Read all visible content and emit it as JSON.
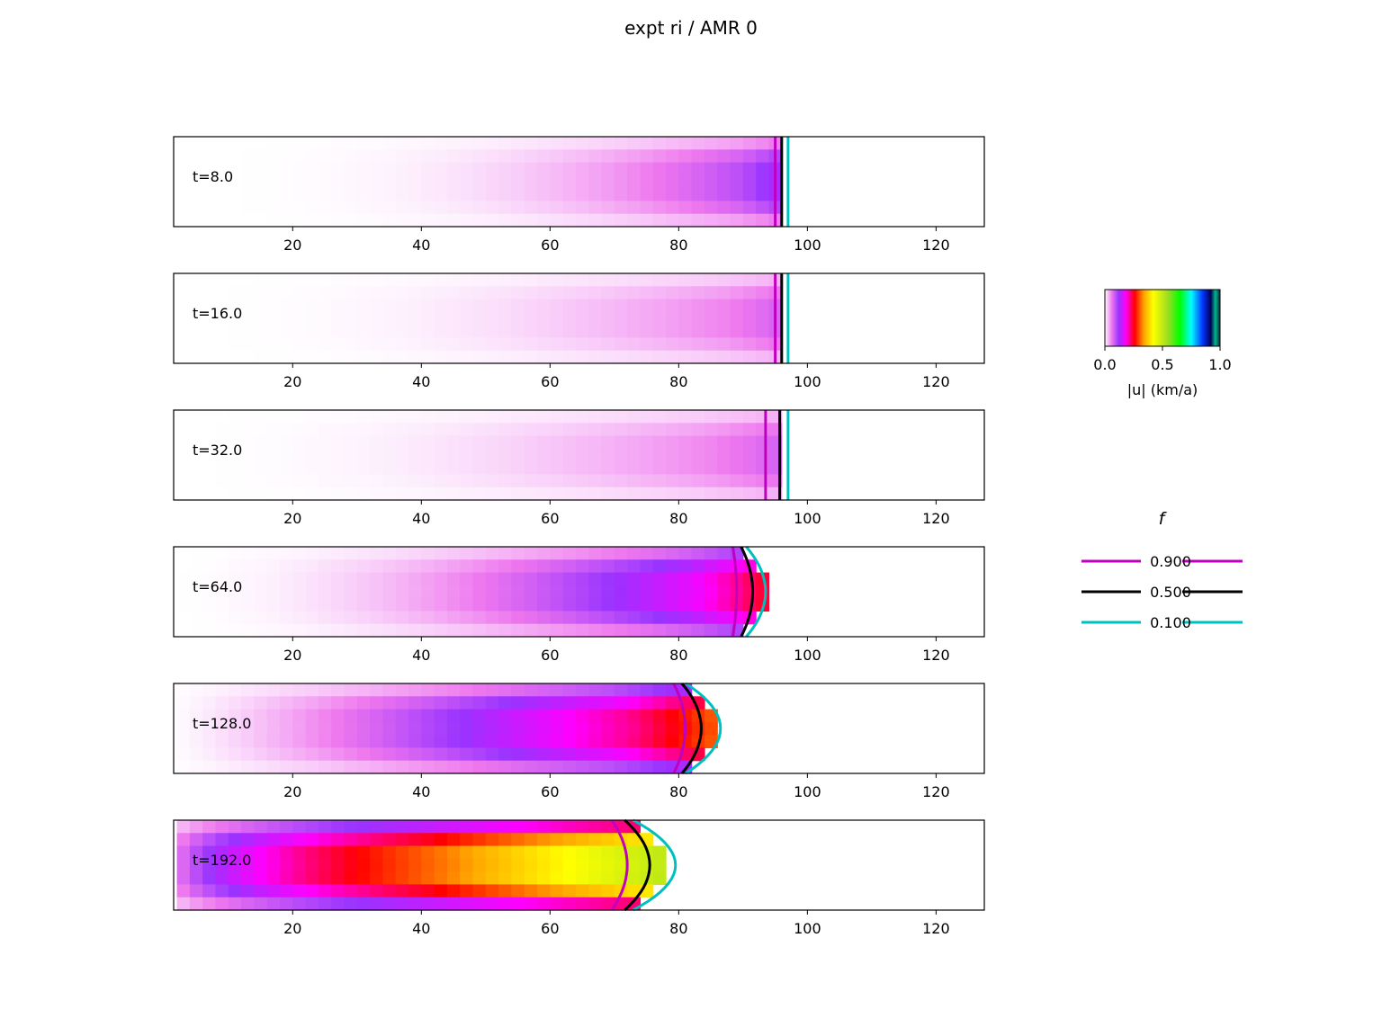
{
  "figure": {
    "title": "expt ri / AMR 0"
  },
  "chart_data": {
    "type": "heatmap",
    "title": "expt ri / AMR 0",
    "x_ticks": [
      20,
      40,
      60,
      80,
      100,
      120
    ],
    "xlim": [
      1.5,
      127.5
    ],
    "colormap": {
      "label": "|u| (km/a)",
      "range": [
        0.0,
        1.0
      ],
      "ticks": [
        "0.0",
        "0.5",
        "1.0"
      ],
      "stops": [
        {
          "v": 0.0,
          "c": "#ffffff"
        },
        {
          "v": 0.06,
          "c": "#ee77ee"
        },
        {
          "v": 0.12,
          "c": "#9933ff"
        },
        {
          "v": 0.18,
          "c": "#ff00ff"
        },
        {
          "v": 0.26,
          "c": "#ff0000"
        },
        {
          "v": 0.34,
          "c": "#ffa500"
        },
        {
          "v": 0.42,
          "c": "#ffff00"
        },
        {
          "v": 0.55,
          "c": "#99dd22"
        },
        {
          "v": 0.65,
          "c": "#00ff00"
        },
        {
          "v": 0.75,
          "c": "#00ffff"
        },
        {
          "v": 0.85,
          "c": "#0033ff"
        },
        {
          "v": 0.92,
          "c": "#000055"
        },
        {
          "v": 0.96,
          "c": "#00bb88"
        },
        {
          "v": 1.0,
          "c": "#002244"
        }
      ]
    },
    "contours": {
      "title": "f",
      "levels": [
        {
          "label": "0.900",
          "color": "#bf00bf"
        },
        {
          "label": "0.500",
          "color": "#000000"
        },
        {
          "label": "0.100",
          "color": "#00bfbf"
        }
      ]
    },
    "panels": [
      {
        "label": "t=8.0",
        "front": 96.5,
        "c": [
          95.0,
          96.0,
          97.0
        ],
        "curv": [
          0,
          0,
          0
        ],
        "umax": 0.12,
        "coreW": 7,
        "gamma": 3.0,
        "edgeExt": 0
      },
      {
        "label": "t=16.0",
        "front": 96.5,
        "c": [
          95.0,
          96.0,
          97.0
        ],
        "curv": [
          0,
          0,
          0
        ],
        "umax": 0.07,
        "coreW": 9,
        "gamma": 2.5,
        "edgeExt": 0
      },
      {
        "label": "t=32.0",
        "front": 96.5,
        "c": [
          93.5,
          95.7,
          97.0
        ],
        "curv": [
          0,
          0,
          0
        ],
        "umax": 0.07,
        "coreW": 12,
        "gamma": 2.2,
        "edgeExt": 0
      },
      {
        "label": "t=64.0",
        "front": 94.5,
        "c": [
          89.0,
          91.5,
          93.5
        ],
        "curv": [
          0.2,
          0.6,
          1.0
        ],
        "umax": 0.22,
        "coreW": 12,
        "gamma": 2.0,
        "edgeExt": 0
      },
      {
        "label": "t=128.0",
        "front": 87.0,
        "c": [
          81.0,
          83.5,
          86.5
        ],
        "curv": [
          0.6,
          1.0,
          1.8
        ],
        "umax": 0.27,
        "coreW": 14,
        "gamma": 1.3,
        "edgeExt": 2
      },
      {
        "label": "t=192.0",
        "front": 79.0,
        "c": [
          72.0,
          75.5,
          79.5
        ],
        "curv": [
          0.8,
          1.3,
          2.2
        ],
        "umax": 0.44,
        "coreW": 35,
        "gamma": 0.55,
        "edgeExt": 2
      }
    ]
  }
}
